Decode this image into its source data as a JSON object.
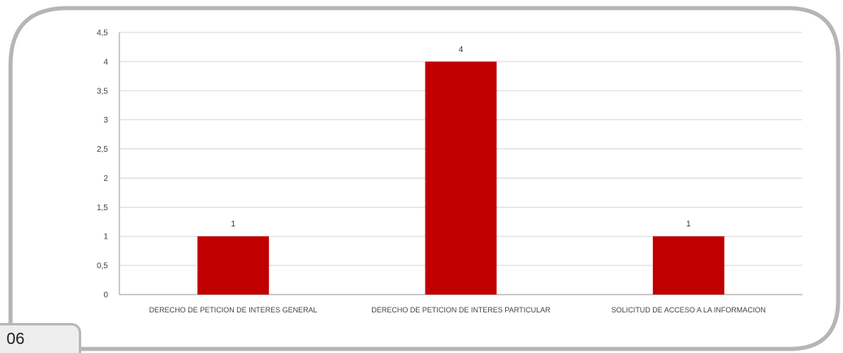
{
  "chart_data": {
    "type": "bar",
    "categories": [
      "DERECHO DE PETICION DE INTERES GENERAL",
      "DERECHO DE PETICION DE INTERES PARTICULAR",
      "SOLICITUD DE ACCESO A LA INFORMACION"
    ],
    "values": [
      1,
      4,
      1
    ],
    "data_labels": [
      "1",
      "4",
      "1"
    ],
    "y_ticks": [
      "0",
      "0,5",
      "1",
      "1,5",
      "2",
      "2,5",
      "3",
      "3,5",
      "4",
      "4,5"
    ],
    "ylim": [
      0,
      4.5
    ],
    "grid": true,
    "legend": "none",
    "bar_color": "#c00000"
  },
  "page": {
    "number": "06"
  }
}
